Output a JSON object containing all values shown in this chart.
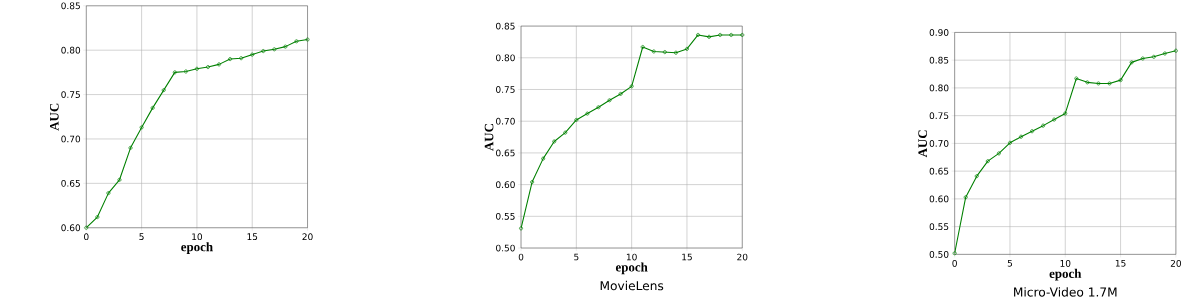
{
  "chart_data": [
    {
      "type": "line",
      "xlabel": "epoch",
      "ylabel": "AUC",
      "x": [
        0,
        1,
        2,
        3,
        4,
        5,
        6,
        7,
        8,
        9,
        10,
        11,
        12,
        13,
        14,
        15,
        16,
        17,
        18,
        19,
        20
      ],
      "xlim": [
        0,
        20
      ],
      "xticks": [
        0,
        5,
        10,
        15,
        20
      ],
      "ylim": [
        0.6,
        0.85
      ],
      "yticks": [
        {
          "value": 0.6,
          "label": "0.60"
        },
        {
          "value": 0.65,
          "label": "0.65"
        },
        {
          "value": 0.7,
          "label": "0.70"
        },
        {
          "value": 0.75,
          "label": "0.75"
        },
        {
          "value": 0.8,
          "label": "0.80"
        },
        {
          "value": 0.85,
          "label": "0.85"
        }
      ],
      "grid": true,
      "marker": "circle",
      "line_style": "solid",
      "series": [
        {
          "color": "#008000",
          "values": [
            0.6,
            0.612,
            0.639,
            0.654,
            0.69,
            0.713,
            0.735,
            0.755,
            0.775,
            0.776,
            0.779,
            0.781,
            0.784,
            0.79,
            0.791,
            0.795,
            0.799,
            0.801,
            0.804,
            0.81,
            0.812
          ]
        }
      ]
    },
    {
      "type": "line",
      "title": "MovieLens",
      "xlabel": "epoch",
      "ylabel": "AUC",
      "x": [
        0,
        1,
        2,
        3,
        4,
        5,
        6,
        7,
        8,
        9,
        10,
        11,
        12,
        13,
        14,
        15,
        16,
        17,
        18,
        19,
        20
      ],
      "xlim": [
        0,
        20
      ],
      "xticks": [
        0,
        5,
        10,
        15,
        20
      ],
      "ylim": [
        0.5,
        0.85
      ],
      "yticks": [
        {
          "value": 0.5,
          "label": "0.50"
        },
        {
          "value": 0.55,
          "label": "0.55"
        },
        {
          "value": 0.6,
          "label": "0.60"
        },
        {
          "value": 0.65,
          "label": "0.65"
        },
        {
          "value": 0.7,
          "label": "0.70"
        },
        {
          "value": 0.75,
          "label": "0.75"
        },
        {
          "value": 0.8,
          "label": "0.80"
        },
        {
          "value": 0.85,
          "label": "0.85"
        }
      ],
      "grid": true,
      "marker": "circle",
      "line_style": "solid",
      "series": [
        {
          "color": "#008000",
          "values": [
            0.531,
            0.604,
            0.641,
            0.668,
            0.682,
            0.702,
            0.712,
            0.722,
            0.733,
            0.743,
            0.755,
            0.817,
            0.81,
            0.809,
            0.808,
            0.814,
            0.836,
            0.833,
            0.836,
            0.836,
            0.836
          ]
        }
      ]
    },
    {
      "type": "line",
      "title": "Micro-Video 1.7M",
      "xlabel": "epoch",
      "ylabel": "AUC",
      "x": [
        0,
        1,
        2,
        3,
        4,
        5,
        6,
        7,
        8,
        9,
        10,
        11,
        12,
        13,
        14,
        15,
        16,
        17,
        18,
        19,
        20
      ],
      "xlim": [
        0,
        20
      ],
      "xticks": [
        0,
        5,
        10,
        15,
        20
      ],
      "ylim": [
        0.5,
        0.9
      ],
      "yticks": [
        {
          "value": 0.5,
          "label": "0.50"
        },
        {
          "value": 0.55,
          "label": "0.55"
        },
        {
          "value": 0.6,
          "label": "0.60"
        },
        {
          "value": 0.65,
          "label": "0.65"
        },
        {
          "value": 0.7,
          "label": "0.70"
        },
        {
          "value": 0.75,
          "label": "0.75"
        },
        {
          "value": 0.8,
          "label": "0.80"
        },
        {
          "value": 0.85,
          "label": "0.85"
        },
        {
          "value": 0.9,
          "label": "0.90"
        }
      ],
      "grid": true,
      "marker": "circle",
      "line_style": "solid",
      "series": [
        {
          "color": "#008000",
          "values": [
            0.502,
            0.603,
            0.641,
            0.668,
            0.682,
            0.701,
            0.712,
            0.722,
            0.732,
            0.743,
            0.754,
            0.817,
            0.81,
            0.808,
            0.808,
            0.814,
            0.846,
            0.853,
            0.856,
            0.862,
            0.867
          ]
        }
      ]
    }
  ]
}
